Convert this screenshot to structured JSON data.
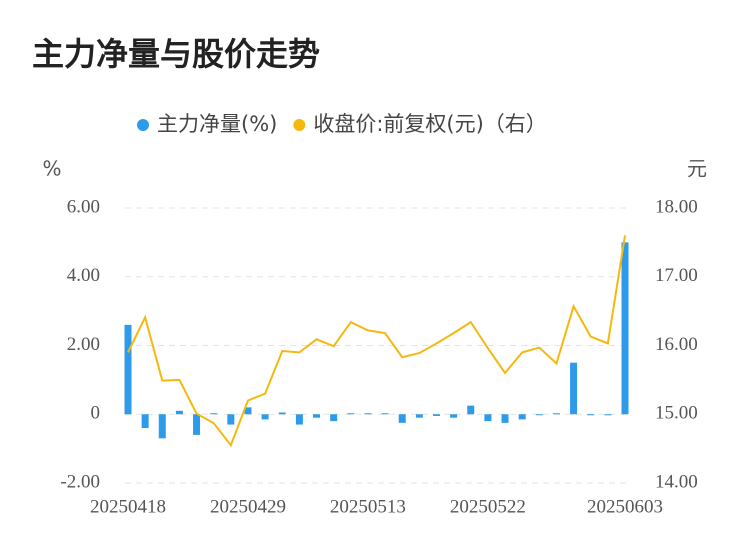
{
  "chart_data": {
    "type": "bar-line",
    "title": "主力净量与股价走势",
    "y_label": "%",
    "y2_label": "元",
    "categories": [
      "20250418",
      null,
      null,
      null,
      null,
      null,
      null,
      "20250429",
      null,
      null,
      null,
      null,
      null,
      null,
      "20250513",
      null,
      null,
      null,
      null,
      null,
      null,
      "20250522",
      null,
      null,
      null,
      null,
      null,
      null,
      null,
      "20250603"
    ],
    "series": [
      {
        "name": "主力净量(%)",
        "type": "bar",
        "color": "#2e9bea",
        "values": [
          2.6,
          -0.4,
          -0.7,
          0.1,
          -0.6,
          0,
          -0.3,
          0.2,
          -0.15,
          0.05,
          -0.3,
          -0.1,
          -0.2,
          0.02,
          0,
          0,
          -0.25,
          -0.1,
          -0.05,
          -0.1,
          0.25,
          -0.2,
          -0.25,
          -0.15,
          -0.02,
          0,
          1.5,
          -0.03,
          -0.03,
          5.0
        ]
      },
      {
        "name": "收盘价:前复权(元)（右）",
        "type": "line",
        "axis": "y2",
        "color": "#f5b80f",
        "values": [
          15.9,
          16.41,
          15.49,
          15.5,
          15.01,
          14.87,
          14.55,
          15.2,
          15.3,
          15.92,
          15.9,
          16.09,
          15.99,
          16.34,
          16.22,
          16.18,
          15.83,
          15.89,
          16.03,
          16.18,
          16.34,
          15.96,
          15.6,
          15.9,
          15.97,
          15.74,
          16.57,
          16.13,
          16.03,
          17.6
        ]
      }
    ],
    "ylim": [
      -2,
      6
    ],
    "yticks": [
      {
        "value": -2,
        "label": "-2.00"
      },
      0,
      {
        "value": 2,
        "label": "2.00"
      },
      {
        "value": 4,
        "label": "4.00"
      },
      {
        "value": 6,
        "label": "6.00"
      }
    ],
    "y2lim": [
      14,
      18
    ],
    "y2ticks": [
      {
        "value": 14,
        "label": "14.00"
      },
      {
        "value": 15,
        "label": "15.00"
      },
      {
        "value": 16,
        "label": "16.00"
      },
      {
        "value": 17,
        "label": "17.00"
      },
      {
        "value": 18,
        "label": "18.00"
      }
    ],
    "grid": true
  }
}
